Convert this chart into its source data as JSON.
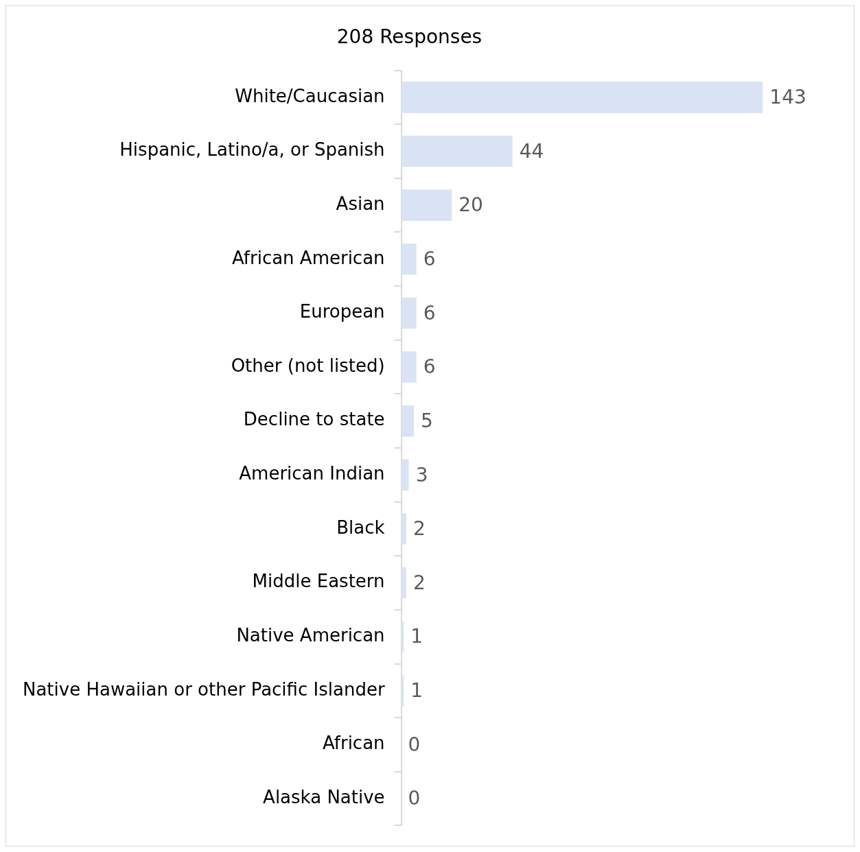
{
  "chart_data": {
    "type": "bar",
    "orientation": "horizontal",
    "title": "208 Responses",
    "categories": [
      "White/Caucasian",
      "Hispanic, Latino/a, or Spanish",
      "Asian",
      "African American",
      "European",
      "Other (not listed)",
      "Decline to state",
      "American Indian",
      "Black",
      "Middle Eastern",
      "Native American",
      "Native Hawaiian or other Pacific Islander",
      "African",
      "Alaska Native"
    ],
    "values": [
      143,
      44,
      20,
      6,
      6,
      6,
      5,
      3,
      2,
      2,
      1,
      1,
      0,
      0
    ],
    "color": "#dae3f3",
    "tick_labels": "y",
    "legend": false,
    "data_labels": true
  }
}
